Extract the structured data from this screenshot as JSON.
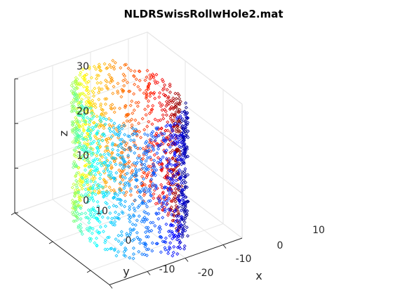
{
  "chart_data": {
    "type": "scatter",
    "projection": "3d",
    "title": "NLDRSwissRollwHole2.mat",
    "xlabel": "x",
    "ylabel": "y",
    "zlabel": "z",
    "xlim": [
      -20,
      15
    ],
    "ylim": [
      -15,
      10
    ],
    "zlim": [
      0,
      30
    ],
    "xticks": [
      "-20",
      "-10",
      "0",
      "10"
    ],
    "yticks": [
      "-10",
      "0",
      "10"
    ],
    "zticks": [
      "0",
      "10",
      "20",
      "30"
    ],
    "grid": true,
    "marker": "diamond-open",
    "colormap": "jet",
    "color_variable": "angle along roll (t)",
    "shape": {
      "kind": "swiss-roll",
      "center": [
        -3,
        -3
      ],
      "radius": 10,
      "height_range": [
        0,
        30
      ],
      "turns": 1,
      "hole": "missing points in a central patch of the roll surface"
    },
    "point_count": 2000,
    "colors": {
      "jet_start": "#00008f",
      "jet_blue": "#0000ff",
      "jet_cyan": "#00ffff",
      "jet_yellow": "#ffff00",
      "jet_red": "#ff0000",
      "jet_end": "#800000"
    }
  }
}
